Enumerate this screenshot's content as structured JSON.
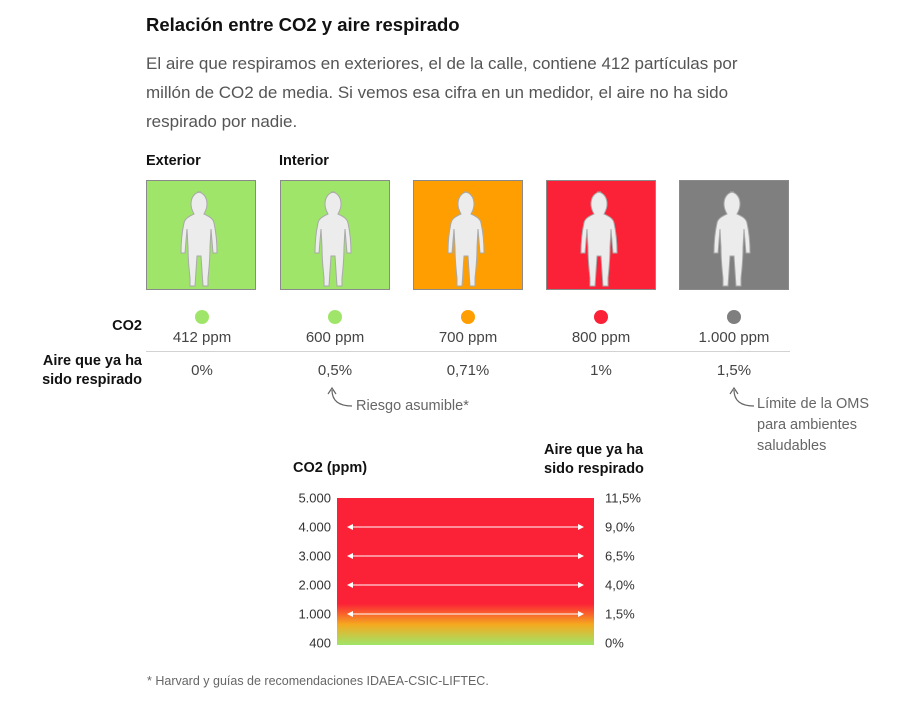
{
  "title": "Relación entre CO2 y aire respirado",
  "intro": "El aire que respiramos en exteriores, el de la calle, contiene 412 partículas por millón de CO2 de media. Si vemos esa cifra en un medidor, el aire no ha sido respirado por nadie.",
  "headers": {
    "exterior": "Exterior",
    "interior": "Interior"
  },
  "row_labels": {
    "co2": "CO2",
    "rebreathed_line1": "Aire que ya ha",
    "rebreathed_line2": "sido respirado"
  },
  "scenarios": [
    {
      "ppm": "412 ppm",
      "rebreathed": "0%",
      "color": "#9fe569"
    },
    {
      "ppm": "600 ppm",
      "rebreathed": "0,5%",
      "color": "#9fe569"
    },
    {
      "ppm": "700 ppm",
      "rebreathed": "0,71%",
      "color": "#ff9e00"
    },
    {
      "ppm": "800 ppm",
      "rebreathed": "1%",
      "color": "#fb2237"
    },
    {
      "ppm": "1.000 ppm",
      "rebreathed": "1,5%",
      "color": "#7f7f7f"
    }
  ],
  "annotations": {
    "risk": "Riesgo asumible*",
    "oms_line1": "Límite de la OMS",
    "oms_line2": "para ambientes",
    "oms_line3": "saludables"
  },
  "scale": {
    "left_head": "CO2 (ppm)",
    "right_head_line1": "Aire que ya ha",
    "right_head_line2": "sido respirado",
    "gradient_colors": [
      "#fb2237",
      "#fb2237",
      "#f5a91f",
      "#9fe569"
    ]
  },
  "chart_data": {
    "type": "table",
    "columns": [
      "CO2 (ppm)",
      "Aire que ya ha sido respirado"
    ],
    "rows": [
      [
        "5.000",
        "11,5%"
      ],
      [
        "4.000",
        "9,0%"
      ],
      [
        "3.000",
        "6,5%"
      ],
      [
        "2.000",
        "4,0%"
      ],
      [
        "1.000",
        "1,5%"
      ],
      [
        "400",
        "0%"
      ]
    ],
    "x": [
      5000,
      4000,
      3000,
      2000,
      1000,
      400
    ],
    "values": [
      11.5,
      9.0,
      6.5,
      4.0,
      1.5,
      0
    ],
    "ylim": [
      400,
      5000
    ]
  },
  "footnote": "* Harvard y guías de recomendaciones IDAEA-CSIC-LIFTEC."
}
